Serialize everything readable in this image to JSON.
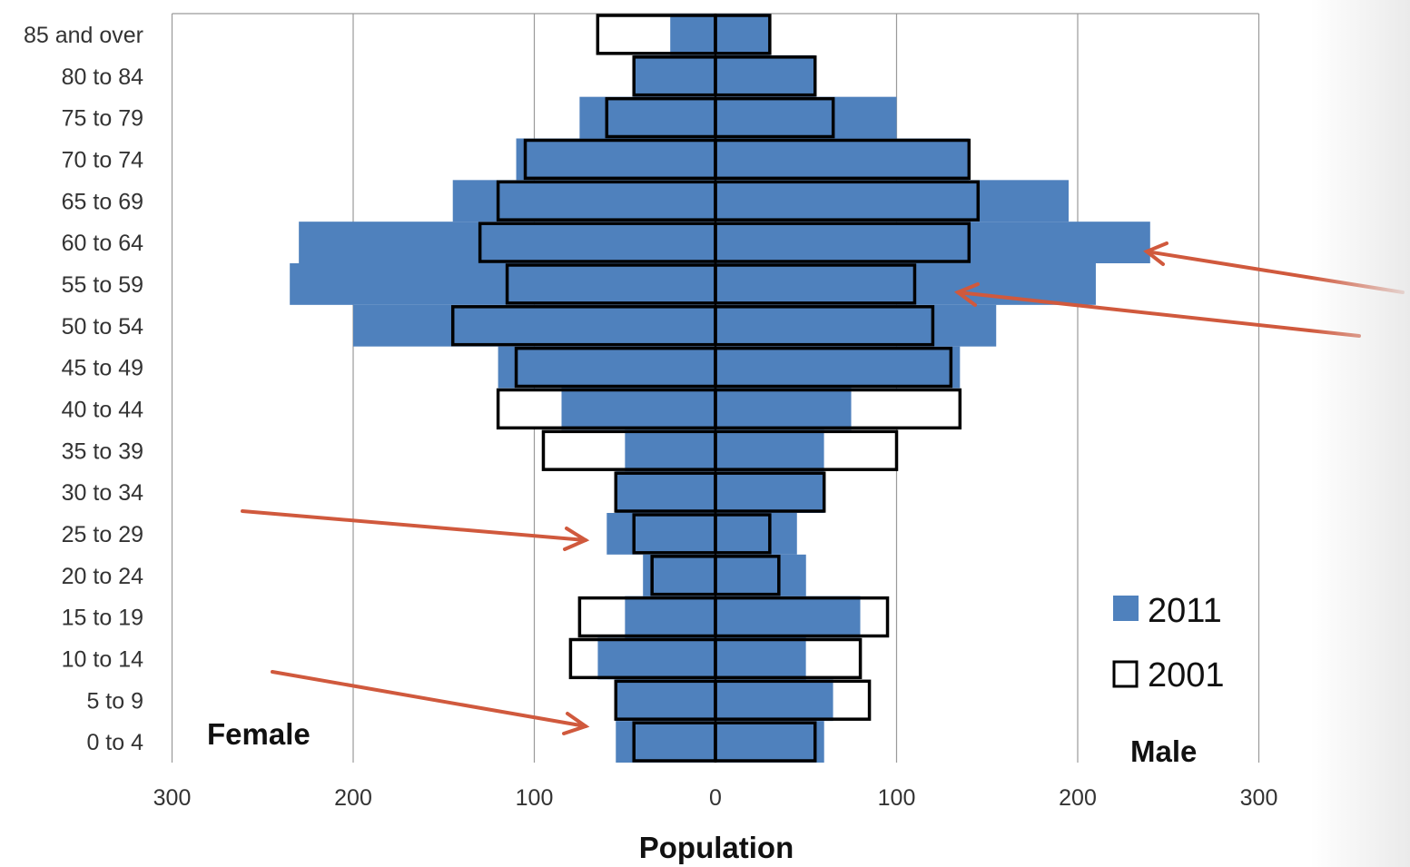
{
  "chart_data": {
    "type": "bar",
    "orientation": "horizontal",
    "subtype": "population-pyramid",
    "categories": [
      "85 and over",
      "80 to 84",
      "75 to 79",
      "70 to 74",
      "65 to 69",
      "60 to 64",
      "55 to 59",
      "50 to 54",
      "45 to 49",
      "40 to 44",
      "35 to 39",
      "30 to 34",
      "25 to 29",
      "20 to 24",
      "15 to 19",
      "10 to 14",
      "5 to 9",
      "0 to 4"
    ],
    "series": [
      {
        "name": "2011",
        "style": "filled",
        "color": "#4F81BD",
        "female": [
          25,
          45,
          75,
          110,
          145,
          230,
          235,
          200,
          120,
          85,
          50,
          55,
          60,
          40,
          50,
          65,
          55,
          55
        ],
        "male": [
          30,
          55,
          100,
          140,
          195,
          240,
          210,
          155,
          135,
          75,
          60,
          60,
          45,
          50,
          80,
          50,
          65,
          60
        ]
      },
      {
        "name": "2001",
        "style": "outline",
        "color": "#000000",
        "female": [
          65,
          45,
          60,
          105,
          120,
          130,
          115,
          145,
          110,
          120,
          95,
          55,
          45,
          35,
          75,
          80,
          55,
          45
        ],
        "male": [
          30,
          55,
          65,
          140,
          145,
          140,
          110,
          120,
          130,
          135,
          100,
          60,
          30,
          35,
          95,
          80,
          85,
          55
        ]
      }
    ],
    "x_ticks": [
      "300",
      "200",
      "100",
      "0",
      "100",
      "200",
      "300"
    ],
    "xlim": [
      -300,
      300
    ],
    "xlabel": "Population",
    "left_label": "Female",
    "right_label": "Male",
    "legend": {
      "placement": "bottom-right",
      "entries": [
        "2011",
        "2001"
      ]
    },
    "grid": true,
    "annotations": [
      {
        "type": "arrow",
        "color": "#D0593D",
        "points_to": "60 to 64 (male, 2011)"
      },
      {
        "type": "arrow",
        "color": "#D0593D",
        "points_to": "55 to 59 (male)"
      },
      {
        "type": "arrow",
        "color": "#D0593D",
        "points_to": "25 to 29 (female)"
      },
      {
        "type": "arrow",
        "color": "#D0593D",
        "points_to": "0 to 4 (female)"
      }
    ]
  }
}
